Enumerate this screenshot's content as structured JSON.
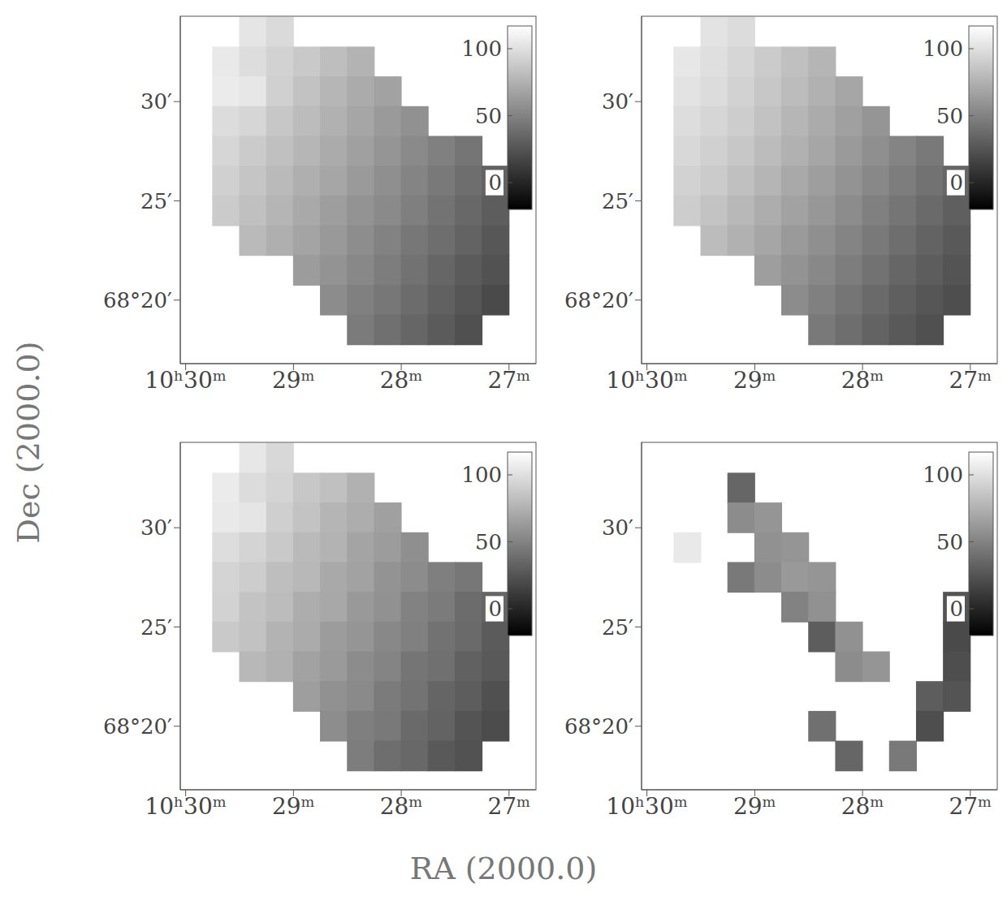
{
  "x_label": "RA (2000.0)",
  "y_label": "Dec (2000.0)",
  "chart_data": [
    {
      "type": "heatmap",
      "x": [
        29.625,
        29.375,
        29.125,
        28.875,
        28.625,
        28.375,
        28.125,
        27.875,
        27.625,
        27.375,
        27.125
      ],
      "y": [
        33.5,
        32,
        30.5,
        29,
        27.5,
        26,
        24.5,
        23,
        21.5,
        20,
        18.5
      ],
      "cells": [
        [
          null,
          103,
          97,
          null,
          null,
          null,
          null,
          null,
          null,
          null,
          null
        ],
        [
          105,
          99,
          93,
          88,
          82,
          76,
          null,
          null,
          null,
          null,
          null
        ],
        [
          106,
          104,
          92,
          84,
          78,
          72,
          67,
          null,
          null,
          null,
          null
        ],
        [
          98,
          95,
          87,
          81,
          75,
          69,
          63,
          58,
          null,
          null,
          null
        ],
        [
          95,
          89,
          83,
          78,
          72,
          66,
          60,
          54,
          49,
          43,
          null
        ],
        [
          92,
          86,
          80,
          74,
          69,
          63,
          57,
          51,
          45,
          39,
          33
        ],
        [
          89,
          83,
          77,
          71,
          65,
          59,
          54,
          48,
          42,
          36,
          30
        ],
        [
          null,
          80,
          74,
          68,
          62,
          56,
          50,
          44,
          39,
          33,
          27
        ],
        [
          null,
          null,
          null,
          64,
          59,
          53,
          47,
          41,
          35,
          29,
          24
        ],
        [
          null,
          null,
          null,
          null,
          55,
          49,
          44,
          38,
          32,
          26,
          20
        ],
        [
          null,
          null,
          null,
          null,
          null,
          46,
          40,
          35,
          29,
          23,
          null
        ]
      ],
      "xlim": [
        30.05,
        26.75
      ],
      "xticks": [
        {
          "value": 30,
          "label": "10ʰ30ᵐ"
        },
        {
          "value": 29,
          "label": "29ᵐ"
        },
        {
          "value": 28,
          "label": "28ᵐ"
        },
        {
          "value": 27,
          "label": "27ᵐ"
        }
      ],
      "ylim": [
        16.8,
        34.3
      ],
      "yticks": [
        {
          "value": 30,
          "label": "30′"
        },
        {
          "value": 25,
          "label": "25′"
        },
        {
          "value": 20,
          "label": "68°20′"
        }
      ],
      "colorbar": {
        "range": [
          -20,
          117
        ],
        "ticks": [
          0,
          50,
          100
        ]
      }
    },
    {
      "type": "heatmap",
      "x": [
        29.625,
        29.375,
        29.125,
        28.875,
        28.625,
        28.375,
        28.125,
        27.875,
        27.625,
        27.375,
        27.125
      ],
      "y": [
        33.5,
        32,
        30.5,
        29,
        27.5,
        26,
        24.5,
        23,
        21.5,
        20,
        18.5
      ],
      "cells": [
        [
          null,
          102,
          98,
          null,
          null,
          null,
          null,
          null,
          null,
          null,
          null
        ],
        [
          104,
          100,
          95,
          89,
          83,
          77,
          null,
          null,
          null,
          null,
          null
        ],
        [
          102,
          98,
          93,
          87,
          81,
          75,
          69,
          null,
          null,
          null,
          null
        ],
        [
          99,
          95,
          90,
          84,
          78,
          72,
          66,
          60,
          null,
          null,
          null
        ],
        [
          96,
          92,
          87,
          81,
          75,
          69,
          63,
          57,
          51,
          45,
          null
        ],
        [
          93,
          89,
          83,
          77,
          71,
          65,
          59,
          53,
          47,
          41,
          35
        ],
        [
          90,
          85,
          79,
          73,
          67,
          61,
          55,
          49,
          43,
          37,
          31
        ],
        [
          null,
          81,
          75,
          69,
          63,
          57,
          51,
          45,
          39,
          33,
          28
        ],
        [
          null,
          null,
          null,
          65,
          59,
          53,
          47,
          41,
          35,
          30,
          25
        ],
        [
          null,
          null,
          null,
          null,
          55,
          49,
          43,
          37,
          31,
          26,
          22
        ],
        [
          null,
          null,
          null,
          null,
          null,
          45,
          39,
          33,
          28,
          23,
          null
        ]
      ],
      "xlim": [
        30.05,
        26.75
      ],
      "xticks": [
        {
          "value": 30,
          "label": "10ʰ30ᵐ"
        },
        {
          "value": 29,
          "label": "29ᵐ"
        },
        {
          "value": 28,
          "label": "28ᵐ"
        },
        {
          "value": 27,
          "label": "27ᵐ"
        }
      ],
      "ylim": [
        16.8,
        34.3
      ],
      "yticks": [
        {
          "value": 30,
          "label": "30′"
        },
        {
          "value": 25,
          "label": "25′"
        },
        {
          "value": 20,
          "label": "68°20′"
        }
      ],
      "colorbar": {
        "range": [
          -20,
          117
        ],
        "ticks": [
          0,
          50,
          100
        ]
      }
    },
    {
      "type": "heatmap",
      "x": [
        29.625,
        29.375,
        29.125,
        28.875,
        28.625,
        28.375,
        28.125,
        27.875,
        27.625,
        27.375,
        27.125
      ],
      "y": [
        33.5,
        32,
        30.5,
        29,
        27.5,
        26,
        24.5,
        23,
        21.5,
        20,
        18.5
      ],
      "cells": [
        [
          null,
          104,
          96,
          null,
          null,
          null,
          null,
          null,
          null,
          null,
          null
        ],
        [
          106,
          98,
          94,
          87,
          83,
          75,
          null,
          null,
          null,
          null,
          null
        ],
        [
          105,
          103,
          91,
          85,
          77,
          73,
          66,
          null,
          null,
          null,
          null
        ],
        [
          99,
          94,
          88,
          80,
          76,
          68,
          64,
          57,
          null,
          null,
          null
        ],
        [
          94,
          90,
          82,
          79,
          71,
          67,
          59,
          55,
          48,
          44,
          null
        ],
        [
          93,
          85,
          81,
          73,
          70,
          62,
          58,
          50,
          46,
          38,
          34
        ],
        [
          88,
          84,
          76,
          72,
          64,
          60,
          53,
          49,
          41,
          37,
          29
        ],
        [
          null,
          79,
          75,
          67,
          63,
          55,
          51,
          43,
          40,
          32,
          28
        ],
        [
          null,
          null,
          null,
          65,
          58,
          54,
          46,
          42,
          34,
          30,
          23
        ],
        [
          null,
          null,
          null,
          null,
          56,
          48,
          45,
          37,
          33,
          25,
          21
        ],
        [
          null,
          null,
          null,
          null,
          null,
          47,
          39,
          36,
          28,
          24,
          null
        ]
      ],
      "xlim": [
        30.05,
        26.75
      ],
      "xticks": [
        {
          "value": 30,
          "label": "10ʰ30ᵐ"
        },
        {
          "value": 29,
          "label": "29ᵐ"
        },
        {
          "value": 28,
          "label": "28ᵐ"
        },
        {
          "value": 27,
          "label": "27ᵐ"
        }
      ],
      "ylim": [
        16.8,
        34.3
      ],
      "yticks": [
        {
          "value": 30,
          "label": "30′"
        },
        {
          "value": 25,
          "label": "25′"
        },
        {
          "value": 20,
          "label": "68°20′"
        }
      ],
      "colorbar": {
        "range": [
          -20,
          117
        ],
        "ticks": [
          0,
          50,
          100
        ]
      }
    },
    {
      "type": "heatmap",
      "x": [
        29.625,
        29.375,
        29.125,
        28.875,
        28.625,
        28.375,
        28.125,
        27.875,
        27.625,
        27.375,
        27.125
      ],
      "y": [
        33.5,
        32,
        30.5,
        29,
        27.5,
        26,
        24.5,
        23,
        21.5,
        20,
        18.5
      ],
      "cells": [
        [
          null,
          null,
          null,
          null,
          null,
          null,
          null,
          null,
          null,
          null,
          null
        ],
        [
          null,
          null,
          35,
          null,
          null,
          null,
          null,
          null,
          null,
          null,
          null
        ],
        [
          null,
          null,
          55,
          60,
          null,
          null,
          null,
          null,
          null,
          null,
          null
        ],
        [
          105,
          null,
          null,
          58,
          60,
          null,
          null,
          null,
          null,
          null,
          null
        ],
        [
          null,
          null,
          45,
          55,
          62,
          60,
          null,
          null,
          null,
          null,
          null
        ],
        [
          null,
          null,
          null,
          null,
          50,
          58,
          null,
          null,
          null,
          null,
          25
        ],
        [
          null,
          null,
          null,
          null,
          null,
          30,
          58,
          null,
          null,
          null,
          20
        ],
        [
          null,
          null,
          null,
          null,
          null,
          null,
          55,
          60,
          null,
          null,
          22
        ],
        [
          null,
          null,
          null,
          null,
          null,
          null,
          null,
          null,
          null,
          30,
          25
        ],
        [
          null,
          null,
          null,
          null,
          null,
          40,
          null,
          null,
          null,
          22,
          null
        ],
        [
          null,
          null,
          null,
          null,
          null,
          null,
          35,
          null,
          45,
          null,
          null
        ]
      ],
      "xlim": [
        30.05,
        26.75
      ],
      "xticks": [
        {
          "value": 30,
          "label": "10ʰ30ᵐ"
        },
        {
          "value": 29,
          "label": "29ᵐ"
        },
        {
          "value": 28,
          "label": "28ᵐ"
        },
        {
          "value": 27,
          "label": "27ᵐ"
        }
      ],
      "ylim": [
        16.8,
        34.3
      ],
      "yticks": [
        {
          "value": 30,
          "label": "30′"
        },
        {
          "value": 25,
          "label": "25′"
        },
        {
          "value": 20,
          "label": "68°20′"
        }
      ],
      "colorbar": {
        "range": [
          -20,
          117
        ],
        "ticks": [
          0,
          50,
          100
        ]
      }
    }
  ]
}
